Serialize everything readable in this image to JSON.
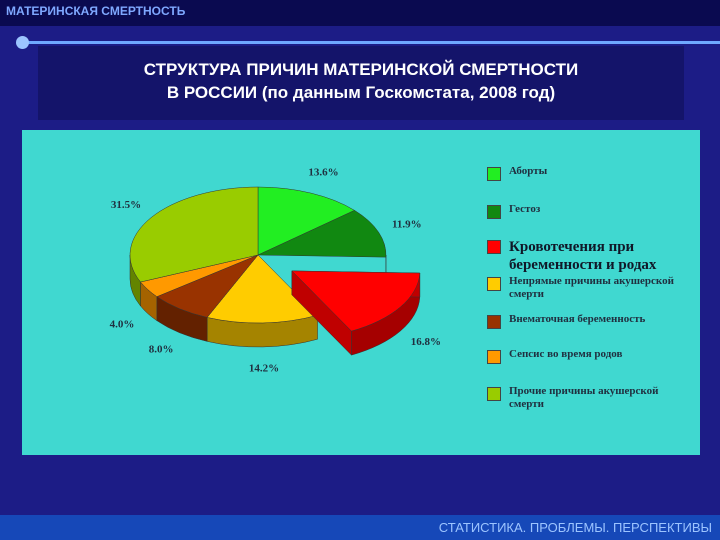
{
  "page": {
    "header": "МАТЕРИНСКАЯ СМЕРТНОСТЬ",
    "footer": "СТАТИСТИКА. ПРОБЛЕМЫ. ПЕРСПЕКТИВЫ"
  },
  "chart_data": {
    "type": "pie3d",
    "title": "СТРУКТУРА ПРИЧИН МАТЕРИНСКОЙ СМЕРТНОСТИ",
    "subtitle": "В РОССИИ (по данным Госкомстата, 2008 год)",
    "categories": [
      "Аборты",
      "Гестоз",
      "Кровотечения при беременности и родах",
      "Непрямые причины акушерской смерти",
      "Внематочная беременность",
      "Сепсис во время родов",
      "Прочие причины акушерской смерти"
    ],
    "values": [
      13.6,
      11.9,
      16.8,
      14.2,
      8.0,
      4.0,
      31.5
    ],
    "value_labels": [
      "13.6%",
      "11.9%",
      "16.8%",
      "14.2%",
      "8.0%",
      "4.0%",
      "31.5%"
    ],
    "colors": [
      "#22ee22",
      "#118811",
      "#ff0000",
      "#ffcc00",
      "#993300",
      "#ff9900",
      "#99cc00"
    ],
    "exploded": [
      false,
      false,
      true,
      false,
      false,
      false,
      false
    ],
    "legend": "right"
  }
}
